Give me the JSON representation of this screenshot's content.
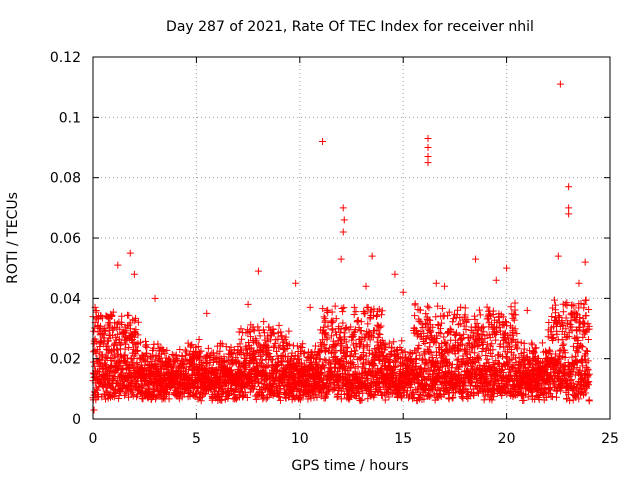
{
  "chart_data": {
    "type": "scatter",
    "title": "Day 287 of 2021, Rate Of TEC Index for receiver nhil",
    "xlabel": "GPS time / hours",
    "ylabel": "ROTI / TECUs",
    "xlim": [
      0,
      25
    ],
    "ylim": [
      0,
      0.12
    ],
    "x_ticks": [
      0,
      5,
      10,
      15,
      20,
      25
    ],
    "x_tick_labels": [
      "0",
      "5",
      "10",
      "15",
      "20",
      "25"
    ],
    "y_ticks": [
      0,
      0.02,
      0.04,
      0.06,
      0.08,
      0.1,
      0.12
    ],
    "y_tick_labels": [
      "0",
      "0.02",
      "0.04",
      "0.06",
      "0.08",
      "0.1",
      "0.12"
    ],
    "grid": true,
    "marker": "+",
    "color": "#ff0000",
    "series": [
      {
        "name": "ROTI",
        "x_range": [
          0,
          24
        ],
        "bulk_range": [
          0.004,
          0.03
        ],
        "outliers": [
          {
            "x": 11.1,
            "y": 0.092
          },
          {
            "x": 12.1,
            "y": 0.07
          },
          {
            "x": 12.15,
            "y": 0.066
          },
          {
            "x": 12.1,
            "y": 0.062
          },
          {
            "x": 16.2,
            "y": 0.093
          },
          {
            "x": 16.2,
            "y": 0.09
          },
          {
            "x": 16.2,
            "y": 0.087
          },
          {
            "x": 16.2,
            "y": 0.085
          },
          {
            "x": 22.6,
            "y": 0.111
          },
          {
            "x": 23.0,
            "y": 0.077
          },
          {
            "x": 23.0,
            "y": 0.07
          },
          {
            "x": 23.0,
            "y": 0.068
          },
          {
            "x": 1.8,
            "y": 0.055
          },
          {
            "x": 1.2,
            "y": 0.051
          },
          {
            "x": 2.0,
            "y": 0.048
          },
          {
            "x": 8.0,
            "y": 0.049
          },
          {
            "x": 9.8,
            "y": 0.045
          },
          {
            "x": 12.0,
            "y": 0.053
          },
          {
            "x": 13.5,
            "y": 0.054
          },
          {
            "x": 14.6,
            "y": 0.048
          },
          {
            "x": 18.5,
            "y": 0.053
          },
          {
            "x": 20.0,
            "y": 0.05
          },
          {
            "x": 23.8,
            "y": 0.052
          },
          {
            "x": 22.5,
            "y": 0.054
          },
          {
            "x": 0.1,
            "y": 0.037
          },
          {
            "x": 3.0,
            "y": 0.04
          },
          {
            "x": 5.5,
            "y": 0.035
          },
          {
            "x": 7.5,
            "y": 0.038
          },
          {
            "x": 10.5,
            "y": 0.037
          },
          {
            "x": 15.0,
            "y": 0.042
          },
          {
            "x": 19.5,
            "y": 0.046
          },
          {
            "x": 21.0,
            "y": 0.036
          },
          {
            "x": 17.0,
            "y": 0.044
          },
          {
            "x": 16.6,
            "y": 0.045
          },
          {
            "x": 13.2,
            "y": 0.044
          },
          {
            "x": 23.5,
            "y": 0.045
          },
          {
            "x": 0.05,
            "y": 0.003
          },
          {
            "x": 24.0,
            "y": 0.006
          }
        ]
      }
    ]
  }
}
